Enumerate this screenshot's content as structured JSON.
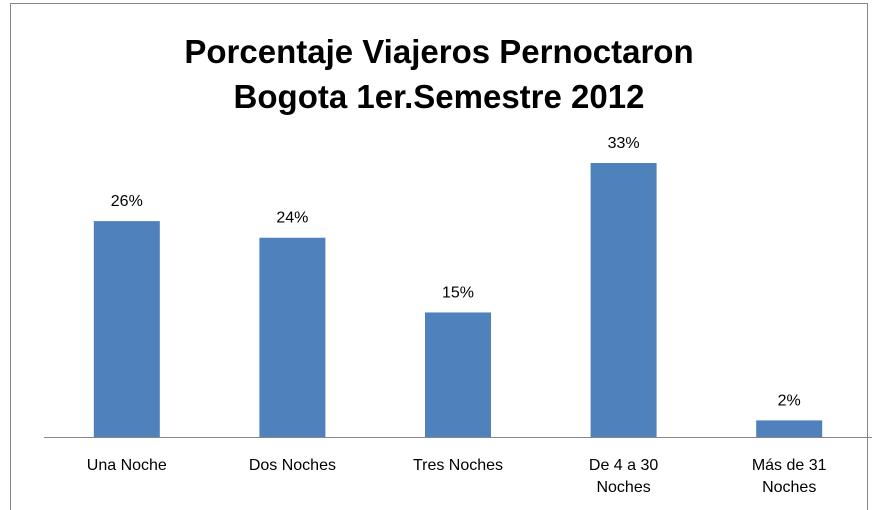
{
  "chart_data": {
    "type": "bar",
    "title": [
      "Porcentaje Viajeros Pernoctaron",
      "Bogota 1er.Semestre 2012"
    ],
    "categories": [
      "Una Noche",
      "Dos Noches",
      "Tres Noches",
      "De 4 a 30 Noches",
      "Más de 31 Noches"
    ],
    "values": [
      26,
      24,
      15,
      33,
      2
    ],
    "value_labels": [
      "26%",
      "24%",
      "15%",
      "33%",
      "2%"
    ],
    "color": "#4f81bd"
  }
}
